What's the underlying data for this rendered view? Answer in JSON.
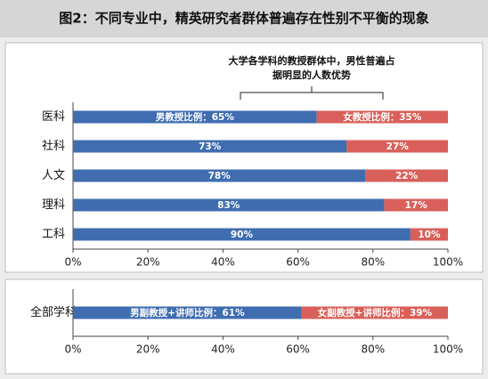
{
  "chart_data": [
    {
      "type": "stacked_barh",
      "title": "图2：不同专业中，精英研究者群体普遍存在性别不平衡的现象",
      "annotation": [
        "大学各学科的教授群体中，男性普遍占",
        "据明显的人数优势"
      ],
      "categories": [
        "医科",
        "社科",
        "人文",
        "理科",
        "工科"
      ],
      "series": [
        {
          "color": "#3f6db0",
          "values": [
            65,
            73,
            78,
            83,
            90
          ],
          "value_labels": [
            "男教授比例：65%",
            "73%",
            "78%",
            "83%",
            "90%"
          ]
        },
        {
          "color": "#d9605a",
          "values": [
            35,
            27,
            22,
            17,
            10
          ],
          "value_labels": [
            "女教授比例：35%",
            "27%",
            "22%",
            "17%",
            "10%"
          ]
        }
      ],
      "xlim": [
        0,
        100
      ],
      "xticks": [
        {
          "value": 0,
          "label": "0%"
        },
        {
          "value": 20,
          "label": "20%"
        },
        {
          "value": 40,
          "label": "40%"
        },
        {
          "value": 60,
          "label": "60%"
        },
        {
          "value": 80,
          "label": "80%"
        },
        {
          "value": 100,
          "label": "100%"
        }
      ]
    },
    {
      "type": "stacked_barh",
      "categories": [
        "全部学科"
      ],
      "series": [
        {
          "color": "#3f6db0",
          "values": [
            61
          ],
          "value_labels": [
            "男副教授+讲师比例：61%"
          ]
        },
        {
          "color": "#d9605a",
          "values": [
            39
          ],
          "value_labels": [
            "女副教授+讲师比例：39%"
          ]
        }
      ],
      "xlim": [
        0,
        100
      ],
      "xticks": [
        {
          "value": 0,
          "label": "0%"
        },
        {
          "value": 20,
          "label": "20%"
        },
        {
          "value": 40,
          "label": "40%"
        },
        {
          "value": 60,
          "label": "60%"
        },
        {
          "value": 80,
          "label": "80%"
        },
        {
          "value": 100,
          "label": "100%"
        }
      ]
    }
  ]
}
